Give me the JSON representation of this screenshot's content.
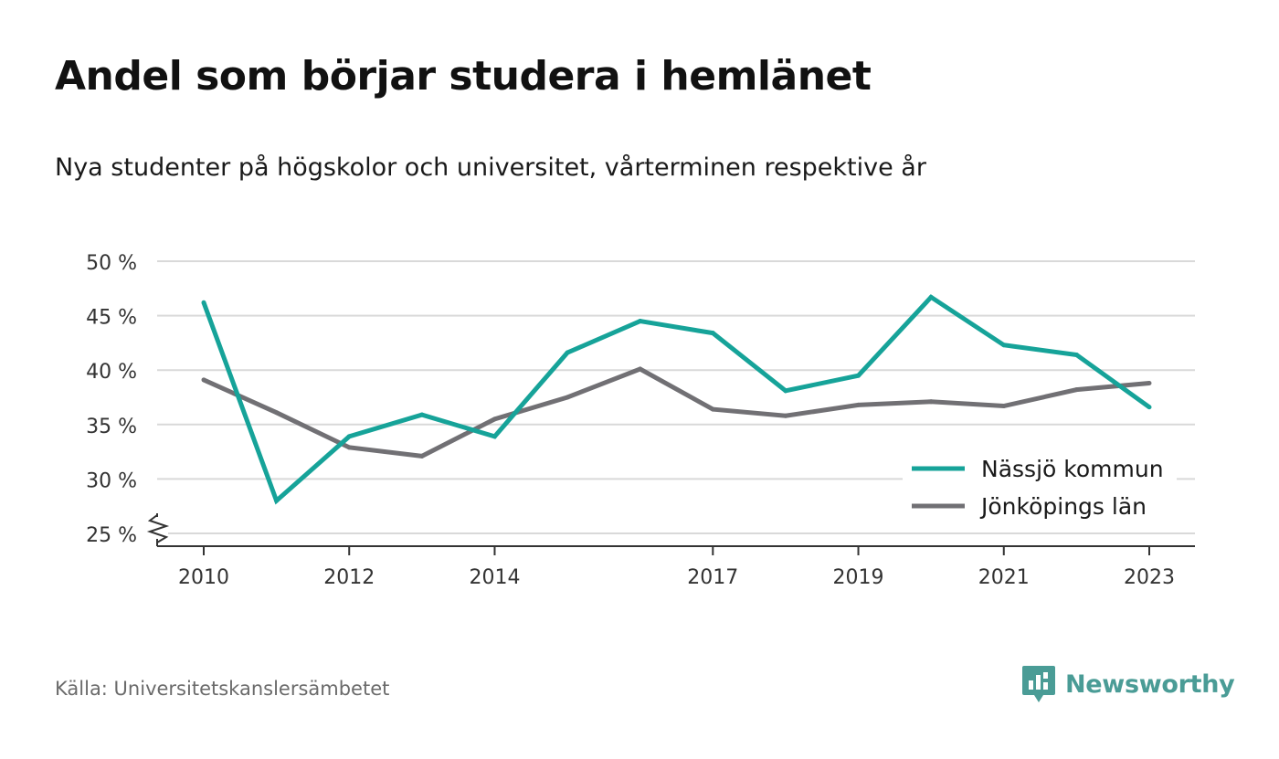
{
  "title": "Andel som börjar studera i hemlänet",
  "subtitle": "Nya studenter på högskolor och universitet, vårterminen respektive år",
  "source": "Källa: Universitetskanslersämbetet",
  "brand": "Newsworthy",
  "colors": {
    "series1": "#16a399",
    "series2": "#717074",
    "grid": "#d9d9d9",
    "axis": "#333333",
    "brand": "#4a9c96"
  },
  "chart_data": {
    "type": "line",
    "title": "Andel som börjar studera i hemlänet",
    "subtitle": "Nya studenter på högskolor och universitet, vårterminen respektive år",
    "x": [
      2010,
      2011,
      2012,
      2013,
      2014,
      2015,
      2016,
      2017,
      2018,
      2019,
      2020,
      2021,
      2022,
      2023
    ],
    "x_tick_labels": [
      "2010",
      "2012",
      "2014",
      "2017",
      "2019",
      "2021",
      "2023"
    ],
    "x_tick_values": [
      2010,
      2012,
      2014,
      2017,
      2019,
      2021,
      2023
    ],
    "y_tick_labels": [
      "25 %",
      "30 %",
      "35 %",
      "40 %",
      "45 %",
      "50 %"
    ],
    "y_tick_values": [
      25,
      30,
      35,
      40,
      45,
      50
    ],
    "ylim": [
      25,
      50
    ],
    "y_axis_break": true,
    "grid": true,
    "legend_position": "bottom-right",
    "series": [
      {
        "name": "Nässjö kommun",
        "color": "#16a399",
        "values": [
          46.2,
          28.0,
          33.9,
          35.9,
          33.9,
          41.6,
          44.5,
          43.4,
          38.1,
          39.5,
          46.7,
          42.3,
          41.4,
          36.6
        ]
      },
      {
        "name": "Jönköpings län",
        "color": "#717074",
        "values": [
          39.1,
          36.1,
          32.9,
          32.1,
          35.5,
          37.5,
          40.1,
          36.4,
          35.8,
          36.8,
          37.1,
          36.7,
          38.2,
          38.8
        ]
      }
    ]
  }
}
